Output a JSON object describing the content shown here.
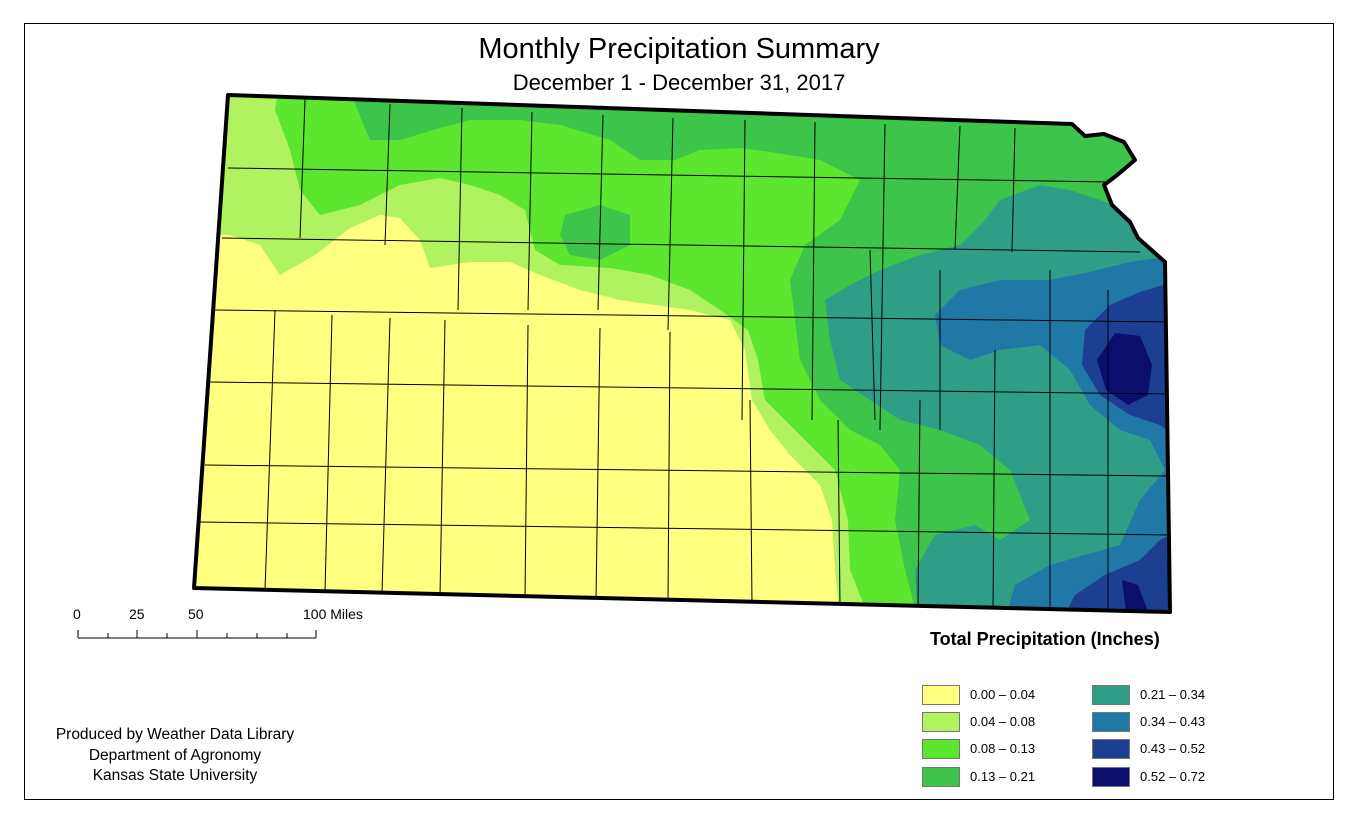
{
  "title": "Monthly Precipitation Summary",
  "subtitle": "December 1 - December 31, 2017",
  "scale_bar": {
    "labels": [
      "0",
      "25",
      "50",
      "100 Miles"
    ]
  },
  "legend": {
    "title": "Total Precipitation (Inches)",
    "items": [
      {
        "label": "0.00 – 0.04",
        "color": "#ffff80"
      },
      {
        "label": "0.04 – 0.08",
        "color": "#b0f260"
      },
      {
        "label": "0.08 – 0.13",
        "color": "#5ce62d"
      },
      {
        "label": "0.13 – 0.21",
        "color": "#3dc44a"
      },
      {
        "label": "0.21 – 0.34",
        "color": "#2e9e86"
      },
      {
        "label": "0.34 – 0.43",
        "color": "#1f78a5"
      },
      {
        "label": "0.43 – 0.52",
        "color": "#1d3f91"
      },
      {
        "label": "0.52 – 0.72",
        "color": "#0a0f6e"
      }
    ]
  },
  "credits": [
    "Produced by Weather Data Library",
    "Department of Agronomy",
    "Kansas State University"
  ]
}
